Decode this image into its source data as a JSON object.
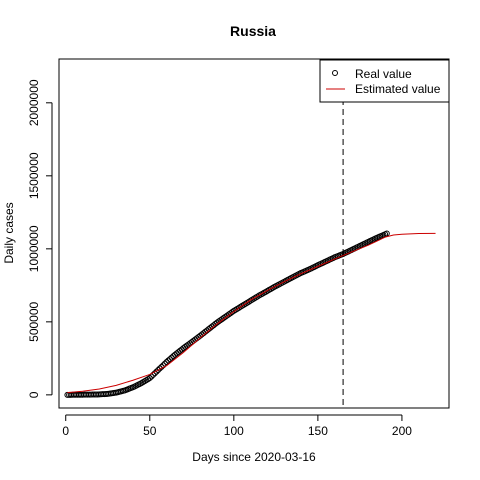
{
  "chart_data": {
    "type": "scatter",
    "title": "Russia",
    "xlabel": "Days since 2020-03-16",
    "ylabel": "Daily cases",
    "xlim": [
      -4,
      228
    ],
    "ylim": [
      -90000,
      2300000
    ],
    "x_ticks": [
      0,
      50,
      100,
      150,
      200
    ],
    "x_tick_labels": [
      "0",
      "50",
      "100",
      "150",
      "200"
    ],
    "y_ticks": [
      0,
      500000,
      1000000,
      1500000,
      2000000
    ],
    "y_tick_labels": [
      "0",
      "500000",
      "1000000",
      "1500000",
      "2000000"
    ],
    "grid": false,
    "legend": {
      "position": "top-right",
      "entries": [
        "Real value",
        "Estimated value"
      ]
    },
    "vline": {
      "x": 165,
      "style": "dashed"
    },
    "series": [
      {
        "name": "Real value",
        "kind": "points",
        "color": "#000000",
        "x_start": 1,
        "x_end": 191,
        "anchors": {
          "x": [
            1,
            10,
            20,
            25,
            30,
            35,
            40,
            45,
            50,
            55,
            60,
            65,
            70,
            75,
            80,
            85,
            90,
            95,
            100,
            105,
            110,
            115,
            120,
            125,
            130,
            135,
            140,
            145,
            150,
            155,
            160,
            165,
            170,
            175,
            180,
            185,
            191
          ],
          "y": [
            0,
            1000,
            3000,
            7000,
            15000,
            30000,
            52000,
            80000,
            115000,
            170000,
            225000,
            275000,
            320000,
            362000,
            405000,
            450000,
            495000,
            535000,
            575000,
            610000,
            645000,
            680000,
            712000,
            745000,
            775000,
            805000,
            835000,
            860000,
            888000,
            915000,
            942000,
            965000,
            992000,
            1020000,
            1048000,
            1075000,
            1105000
          ]
        }
      },
      {
        "name": "Estimated value",
        "kind": "line",
        "color": "#cc0000",
        "x": [
          1,
          10,
          20,
          30,
          40,
          50,
          60,
          70,
          80,
          90,
          100,
          110,
          120,
          130,
          140,
          150,
          160,
          170,
          180,
          190,
          195,
          200,
          210,
          220
        ],
        "y": [
          15000,
          25000,
          40000,
          65000,
          100000,
          140000,
          200000,
          290000,
          390000,
          485000,
          570000,
          650000,
          715000,
          775000,
          830000,
          880000,
          930000,
          978000,
          1025000,
          1080000,
          1095000,
          1100000,
          1105000,
          1106000
        ]
      }
    ]
  }
}
